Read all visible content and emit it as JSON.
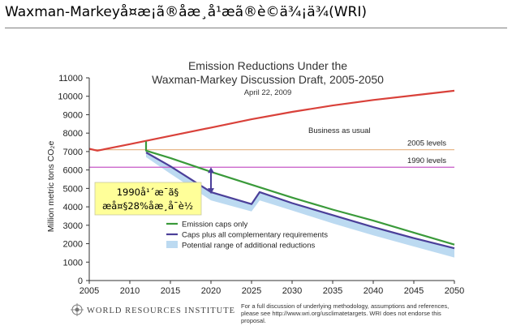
{
  "slide": {
    "title": "Waxman-Markeyå¤æ¡ã®åæ¸å¹æã®è©ä¾¡ä¾(WRI)"
  },
  "chart_data": {
    "type": "line",
    "title_line1": "Emission Reductions Under the",
    "title_line2": "Waxman-Markey Discussion Draft, 2005-2050",
    "date": "April 22, 2009",
    "ylabel": "Million metric tons CO₂e",
    "xlim": [
      2005,
      2050
    ],
    "ylim": [
      0,
      11000
    ],
    "x_ticks": [
      2005,
      2010,
      2015,
      2020,
      2025,
      2030,
      2035,
      2040,
      2045,
      2050
    ],
    "y_ticks": [
      0,
      1000,
      2000,
      3000,
      4000,
      5000,
      6000,
      7000,
      8000,
      9000,
      10000,
      11000
    ],
    "grid": false,
    "legend_position": "bottom-center",
    "series": [
      {
        "name": "Business as usual",
        "color": "#d9413a",
        "points": [
          [
            2005,
            7150
          ],
          [
            2006,
            7050
          ],
          [
            2010,
            7400
          ],
          [
            2015,
            7850
          ],
          [
            2020,
            8300
          ],
          [
            2025,
            8750
          ],
          [
            2030,
            9150
          ],
          [
            2035,
            9500
          ],
          [
            2040,
            9800
          ],
          [
            2045,
            10050
          ],
          [
            2050,
            10300
          ]
        ]
      },
      {
        "name": "Emission caps only",
        "color": "#3a9a3a",
        "points": [
          [
            2012,
            7550
          ],
          [
            2012,
            7050
          ],
          [
            2015,
            6650
          ],
          [
            2020,
            5900
          ],
          [
            2025,
            5200
          ],
          [
            2030,
            4500
          ],
          [
            2035,
            3850
          ],
          [
            2040,
            3250
          ],
          [
            2045,
            2600
          ],
          [
            2050,
            1950
          ]
        ]
      },
      {
        "name": "Caps plus all complementary requirements",
        "color": "#4b3f99",
        "points": [
          [
            2012,
            6950
          ],
          [
            2015,
            6200
          ],
          [
            2020,
            4800
          ],
          [
            2025,
            4150
          ],
          [
            2026,
            4800
          ],
          [
            2030,
            4200
          ],
          [
            2035,
            3550
          ],
          [
            2040,
            2900
          ],
          [
            2045,
            2300
          ],
          [
            2050,
            1750
          ]
        ]
      }
    ],
    "band": {
      "name": "Potential range of additional reductions",
      "color": "#bcdaf1",
      "upper": [
        [
          2012,
          6950
        ],
        [
          2015,
          6200
        ],
        [
          2020,
          4800
        ],
        [
          2025,
          4150
        ],
        [
          2026,
          4800
        ],
        [
          2030,
          4200
        ],
        [
          2035,
          3550
        ],
        [
          2040,
          2900
        ],
        [
          2045,
          2300
        ],
        [
          2050,
          1750
        ]
      ],
      "lower": [
        [
          2012,
          6700
        ],
        [
          2015,
          5800
        ],
        [
          2020,
          4350
        ],
        [
          2025,
          3750
        ],
        [
          2026,
          4350
        ],
        [
          2030,
          3800
        ],
        [
          2035,
          3100
        ],
        [
          2040,
          2450
        ],
        [
          2045,
          1850
        ],
        [
          2050,
          1250
        ]
      ]
    },
    "reference_lines": [
      {
        "label": "2005 levels",
        "value": 7100,
        "color": "#e8b88a"
      },
      {
        "label": "1990 levels",
        "value": 6150,
        "color": "#c658c6"
      }
    ],
    "annotation": {
      "line1": "1990å¹´æ¯ã§",
      "line2": "æå¤§28%åæ¸å¯è½",
      "arrow_x": 2020,
      "arrow_from": 6150,
      "arrow_to": 4700,
      "fill": "#ffff99",
      "arrow_color": "#4b3f99"
    }
  },
  "footer": {
    "org_name": "WORLD RESOURCES INSTITUTE",
    "note_line1": "For a full discussion of underlying methodology, assumptions and references,",
    "note_line2": "please see http://www.wri.org/usclimatetargets. WRI does not endorse this",
    "note_line3": "proposal."
  }
}
